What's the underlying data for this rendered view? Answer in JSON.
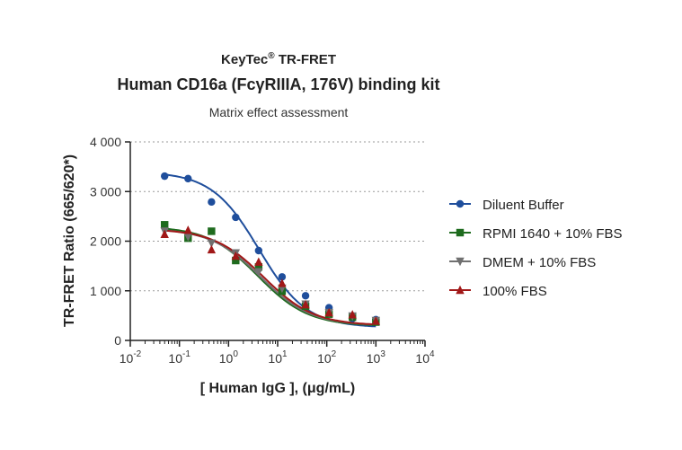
{
  "chart_data": {
    "type": "line",
    "title_brand": "KeyTec",
    "title_brand_mark": "®",
    "title_rest": " TR-FRET",
    "title": "Human CD16a (FcγRIIIA, 176V) binding kit",
    "subtitle": "Matrix effect assessment",
    "xlabel": "[ Human IgG ],  (μg/mL)",
    "ylabel": "TR-FRET Ratio (665/620*)",
    "xscale": "log",
    "xlim": [
      0.01,
      10000
    ],
    "ylim": [
      0,
      4000
    ],
    "x_ticks": [
      {
        "base": "10",
        "exp": "-2"
      },
      {
        "base": "10",
        "exp": "-1"
      },
      {
        "base": "10",
        "exp": "0"
      },
      {
        "base": "10",
        "exp": "1"
      },
      {
        "base": "10",
        "exp": "2"
      },
      {
        "base": "10",
        "exp": "3"
      },
      {
        "base": "10",
        "exp": "4"
      }
    ],
    "y_ticks": [
      {
        "value": 0,
        "label": "0"
      },
      {
        "value": 1000,
        "label": "1 000"
      },
      {
        "value": 2000,
        "label": "2 000"
      },
      {
        "value": 3000,
        "label": "3 000"
      },
      {
        "value": 4000,
        "label": "4 000"
      }
    ],
    "grid": "horizontal dotted",
    "legend_position": "right",
    "x": [
      0.05,
      0.15,
      0.45,
      1.4,
      4.1,
      12.3,
      37,
      111,
      333,
      1000
    ],
    "series": [
      {
        "name": "Diluent Buffer",
        "color": "#1f4e9c",
        "marker": "circle",
        "values": [
          3310,
          3260,
          2790,
          2480,
          1810,
          1280,
          900,
          660,
          440,
          420
        ],
        "fit": {
          "top": 3400,
          "bottom": 260,
          "ec50": 4.2,
          "hill": 0.9
        }
      },
      {
        "name": "RPMI 1640 + 10% FBS",
        "color": "#1e6b1e",
        "marker": "square",
        "values": [
          2330,
          2060,
          2200,
          1610,
          1480,
          990,
          690,
          530,
          470,
          370
        ],
        "fit": {
          "top": 2300,
          "bottom": 290,
          "ec50": 4.0,
          "hill": 0.85
        }
      },
      {
        "name": "DMEM + 10% FBS",
        "color": "#707070",
        "marker": "triangle-down",
        "values": [
          2200,
          2090,
          1960,
          1760,
          1380,
          1050,
          730,
          560,
          490,
          400
        ],
        "fit": {
          "top": 2260,
          "bottom": 300,
          "ec50": 4.5,
          "hill": 0.85
        }
      },
      {
        "name": "100% FBS",
        "color": "#a11818",
        "marker": "triangle-up",
        "values": [
          2140,
          2220,
          1830,
          1700,
          1580,
          1150,
          720,
          560,
          520,
          390
        ],
        "fit": {
          "top": 2250,
          "bottom": 300,
          "ec50": 5.2,
          "hill": 0.85
        }
      }
    ]
  }
}
